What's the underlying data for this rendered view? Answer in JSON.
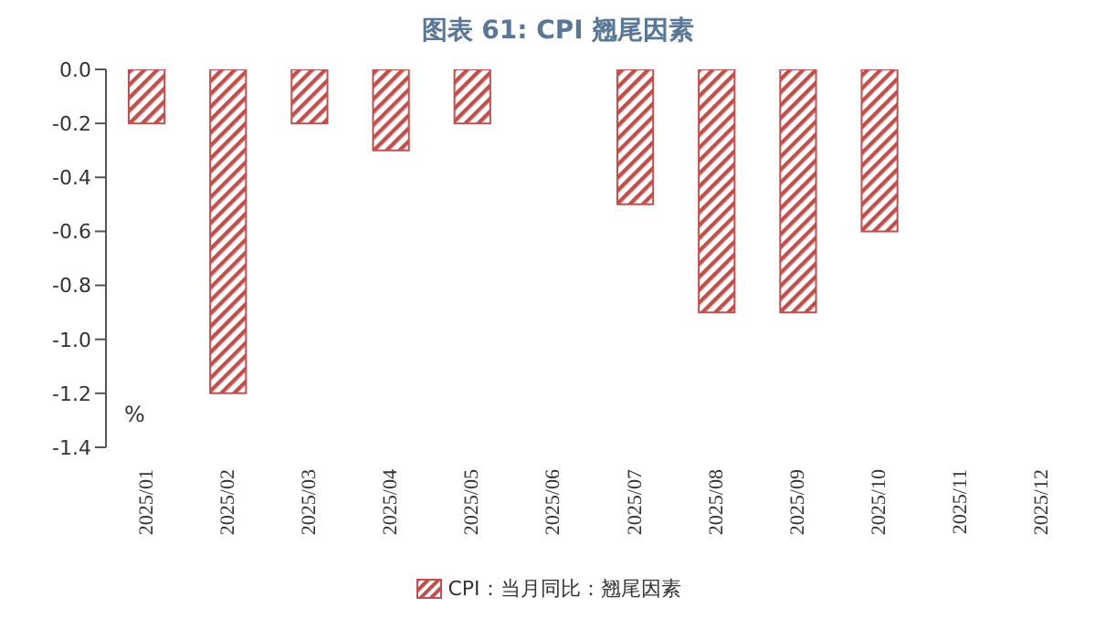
{
  "chart_data": {
    "type": "bar",
    "title": "图表 61: CPI 翘尾因素",
    "ylabel": "%",
    "categories": [
      "2025/01",
      "2025/02",
      "2025/03",
      "2025/04",
      "2025/05",
      "2025/06",
      "2025/07",
      "2025/08",
      "2025/09",
      "2025/10",
      "2025/11",
      "2025/12"
    ],
    "series": [
      {
        "name": "CPI：当月同比：翘尾因素",
        "color": "#c0504d",
        "values": [
          -0.2,
          -1.2,
          -0.2,
          -0.3,
          -0.2,
          0,
          -0.5,
          -0.9,
          -0.9,
          -0.6,
          null,
          null
        ]
      }
    ],
    "ylim": [
      -1.4,
      0
    ],
    "yticks": [
      -1.4,
      -1.2,
      {
        "value": -1,
        "label": "-1.0"
      },
      -0.8,
      -0.6,
      -0.4,
      -0.2,
      {
        "value": 0,
        "label": "0.0"
      }
    ],
    "grid": false,
    "legend": "bottom"
  }
}
